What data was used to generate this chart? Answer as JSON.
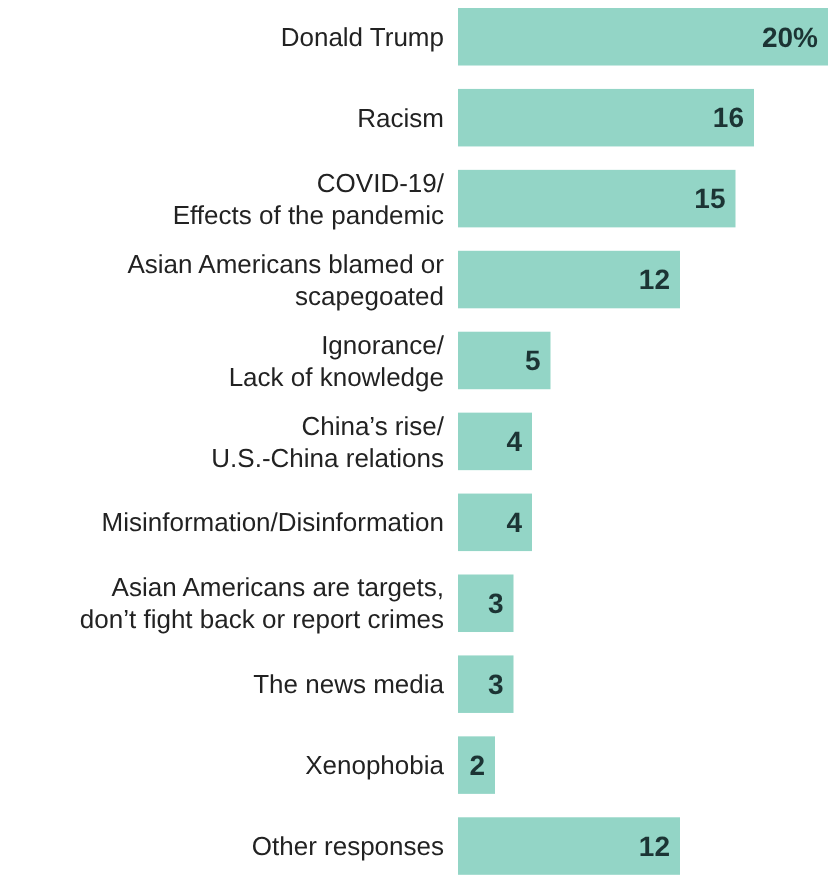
{
  "chart_data": {
    "type": "bar",
    "orientation": "horizontal",
    "categories": [
      "Donald Trump",
      "Racism",
      "COVID-19/\nEffects of the pandemic",
      "Asian Americans blamed or\nscapegoated",
      "Ignorance/\nLack of knowledge",
      "China’s rise/\nU.S.-China relations",
      "Misinformation/Disinformation",
      "Asian Americans are targets,\ndon’t fight back or report crimes",
      "The news media",
      "Xenophobia",
      "Other responses"
    ],
    "values": [
      20,
      16,
      15,
      12,
      5,
      4,
      4,
      3,
      3,
      2,
      12
    ],
    "value_labels": [
      "20%",
      "16",
      "15",
      "12",
      "5",
      "4",
      "4",
      "3",
      "3",
      "2",
      "12"
    ],
    "color": "#93d5c6"
  }
}
